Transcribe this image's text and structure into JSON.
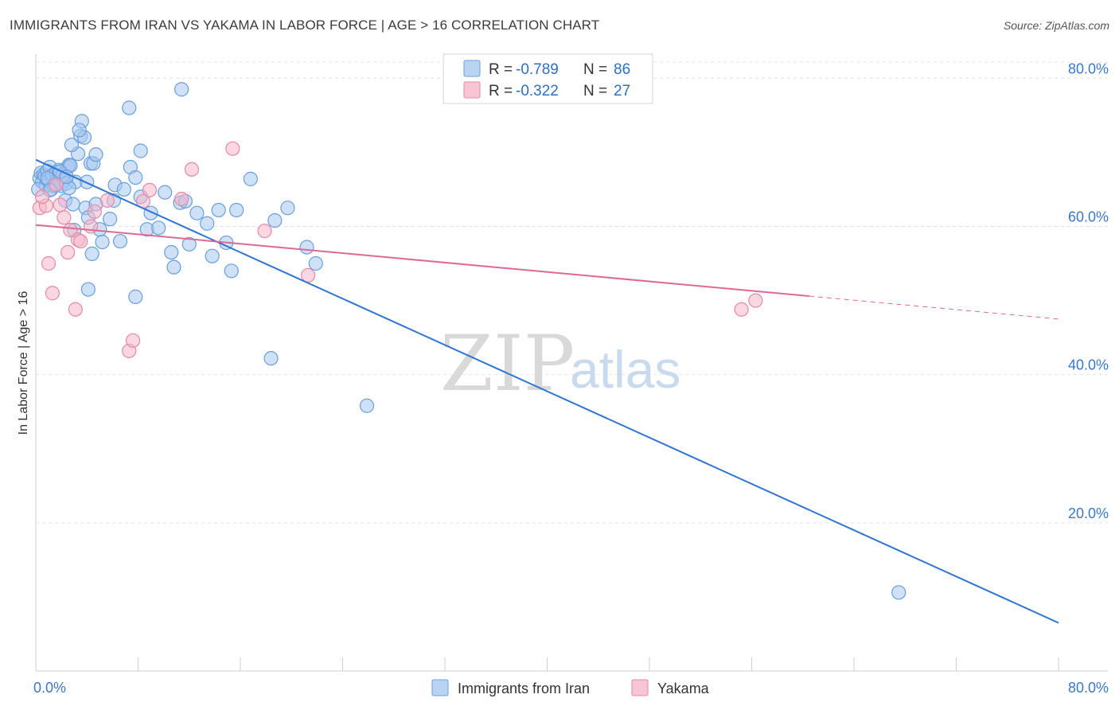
{
  "title": "IMMIGRANTS FROM IRAN VS YAKAMA IN LABOR FORCE | AGE > 16 CORRELATION CHART",
  "source": "Source: ZipAtlas.com",
  "watermark": {
    "zip": "ZIP",
    "atlas": "atlas"
  },
  "legend": {
    "rows": [
      {
        "r_label": "R = ",
        "r_value": "-0.789",
        "n_label": "N = ",
        "n_value": "86",
        "color": "#a8c8f0",
        "stroke": "#6a9fdc"
      },
      {
        "r_label": "R = ",
        "r_value": "-0.322",
        "n_label": "N = ",
        "n_value": "27",
        "color": "#f5b6c9",
        "stroke": "#e48aa6"
      }
    ]
  },
  "bottom_legend": [
    {
      "label": "Immigrants from Iran",
      "color": "#a8c8f0",
      "stroke": "#6a9fdc"
    },
    {
      "label": "Yakama",
      "color": "#f5b6c9",
      "stroke": "#e48aa6"
    }
  ],
  "chart_data": {
    "type": "scatter",
    "ylabel": "In Labor Force | Age > 16",
    "xlim": [
      0,
      80
    ],
    "ylim": [
      0,
      82.5
    ],
    "x_tick_labels": [
      "0.0%",
      "80.0%"
    ],
    "y_ticks": [
      20,
      40,
      60,
      80
    ],
    "y_tick_labels": [
      "20.0%",
      "40.0%",
      "60.0%",
      "80.0%"
    ],
    "grid": true,
    "series": [
      {
        "name": "Immigrants from Iran",
        "color": "#a8c8f0",
        "stroke": "#6a9fdc",
        "line_color": "#2f74d0",
        "trend": {
          "x0": 0,
          "y0": 69.0,
          "x1": 80,
          "y1": 6.5,
          "dashed_from": null
        },
        "points": [
          [
            0.3,
            66.5
          ],
          [
            0.4,
            67.2
          ],
          [
            0.5,
            66.0
          ],
          [
            0.6,
            67.0
          ],
          [
            0.7,
            66.8
          ],
          [
            0.8,
            65.5
          ],
          [
            0.9,
            67.5
          ],
          [
            1.0,
            66.2
          ],
          [
            1.1,
            68.0
          ],
          [
            1.2,
            65.0
          ],
          [
            1.3,
            66.9
          ],
          [
            1.5,
            65.8
          ],
          [
            1.6,
            67.3
          ],
          [
            1.7,
            66.3
          ],
          [
            1.8,
            67.6
          ],
          [
            2.0,
            65.5
          ],
          [
            2.1,
            67.0
          ],
          [
            2.2,
            66.2
          ],
          [
            2.3,
            63.5
          ],
          [
            2.4,
            65.8
          ],
          [
            2.5,
            68.0
          ],
          [
            2.6,
            68.3
          ],
          [
            2.7,
            68.2
          ],
          [
            2.9,
            63.0
          ],
          [
            3.1,
            66.0
          ],
          [
            3.3,
            69.8
          ],
          [
            3.5,
            72.2
          ],
          [
            3.6,
            74.2
          ],
          [
            3.8,
            72.0
          ],
          [
            4.0,
            66.0
          ],
          [
            4.3,
            68.5
          ],
          [
            4.5,
            68.5
          ],
          [
            4.7,
            69.7
          ],
          [
            2.8,
            71.0
          ],
          [
            3.4,
            73.0
          ],
          [
            3.9,
            62.5
          ],
          [
            4.1,
            61.2
          ],
          [
            5.0,
            59.6
          ],
          [
            5.2,
            57.9
          ],
          [
            6.1,
            63.5
          ],
          [
            6.2,
            65.6
          ],
          [
            6.9,
            65.0
          ],
          [
            7.4,
            68.0
          ],
          [
            7.8,
            66.6
          ],
          [
            8.2,
            64.0
          ],
          [
            8.7,
            59.6
          ],
          [
            9.0,
            61.8
          ],
          [
            9.6,
            59.8
          ],
          [
            10.1,
            64.6
          ],
          [
            10.6,
            56.5
          ],
          [
            10.8,
            54.5
          ],
          [
            11.3,
            63.2
          ],
          [
            12.0,
            57.6
          ],
          [
            12.6,
            61.8
          ],
          [
            13.4,
            60.4
          ],
          [
            13.8,
            56.0
          ],
          [
            14.3,
            62.2
          ],
          [
            14.9,
            57.8
          ],
          [
            15.3,
            54.0
          ],
          [
            15.7,
            62.2
          ],
          [
            16.8,
            66.4
          ],
          [
            18.7,
            60.8
          ],
          [
            19.7,
            62.5
          ],
          [
            21.2,
            57.2
          ],
          [
            21.9,
            55.0
          ],
          [
            4.1,
            51.5
          ],
          [
            7.8,
            50.5
          ],
          [
            4.4,
            56.3
          ],
          [
            4.7,
            63.0
          ],
          [
            8.2,
            70.2
          ],
          [
            11.4,
            78.5
          ],
          [
            7.3,
            76.0
          ],
          [
            1.4,
            65.5
          ],
          [
            5.8,
            61.0
          ],
          [
            3.0,
            59.5
          ],
          [
            6.6,
            58.0
          ],
          [
            11.7,
            63.4
          ],
          [
            2.6,
            65.2
          ],
          [
            1.9,
            67.4
          ],
          [
            0.2,
            65.0
          ],
          [
            18.4,
            42.2
          ],
          [
            25.9,
            35.8
          ],
          [
            67.5,
            10.6
          ],
          [
            0.9,
            66.5
          ],
          [
            1.1,
            64.9
          ],
          [
            2.4,
            66.7
          ]
        ]
      },
      {
        "name": "Yakama",
        "color": "#f5b6c9",
        "stroke": "#e48aa6",
        "line_color": "#e06894",
        "trend": {
          "x0": 0,
          "y0": 60.2,
          "x1": 80,
          "y1": 47.5,
          "dashed_from": 60.5
        },
        "points": [
          [
            0.3,
            62.5
          ],
          [
            0.8,
            62.8
          ],
          [
            1.0,
            55.0
          ],
          [
            1.3,
            51.0
          ],
          [
            1.6,
            65.6
          ],
          [
            2.2,
            61.2
          ],
          [
            2.5,
            56.5
          ],
          [
            2.7,
            59.5
          ],
          [
            3.1,
            48.8
          ],
          [
            3.3,
            58.2
          ],
          [
            4.3,
            60.0
          ],
          [
            4.6,
            62.0
          ],
          [
            5.6,
            63.5
          ],
          [
            7.3,
            43.2
          ],
          [
            7.6,
            44.6
          ],
          [
            8.4,
            63.4
          ],
          [
            8.9,
            64.9
          ],
          [
            11.4,
            63.7
          ],
          [
            12.2,
            67.7
          ],
          [
            15.4,
            70.5
          ],
          [
            17.9,
            59.4
          ],
          [
            21.3,
            53.4
          ],
          [
            55.2,
            48.8
          ],
          [
            56.3,
            50.0
          ],
          [
            3.5,
            58.0
          ],
          [
            1.9,
            62.9
          ],
          [
            0.5,
            64.0
          ]
        ]
      }
    ]
  }
}
